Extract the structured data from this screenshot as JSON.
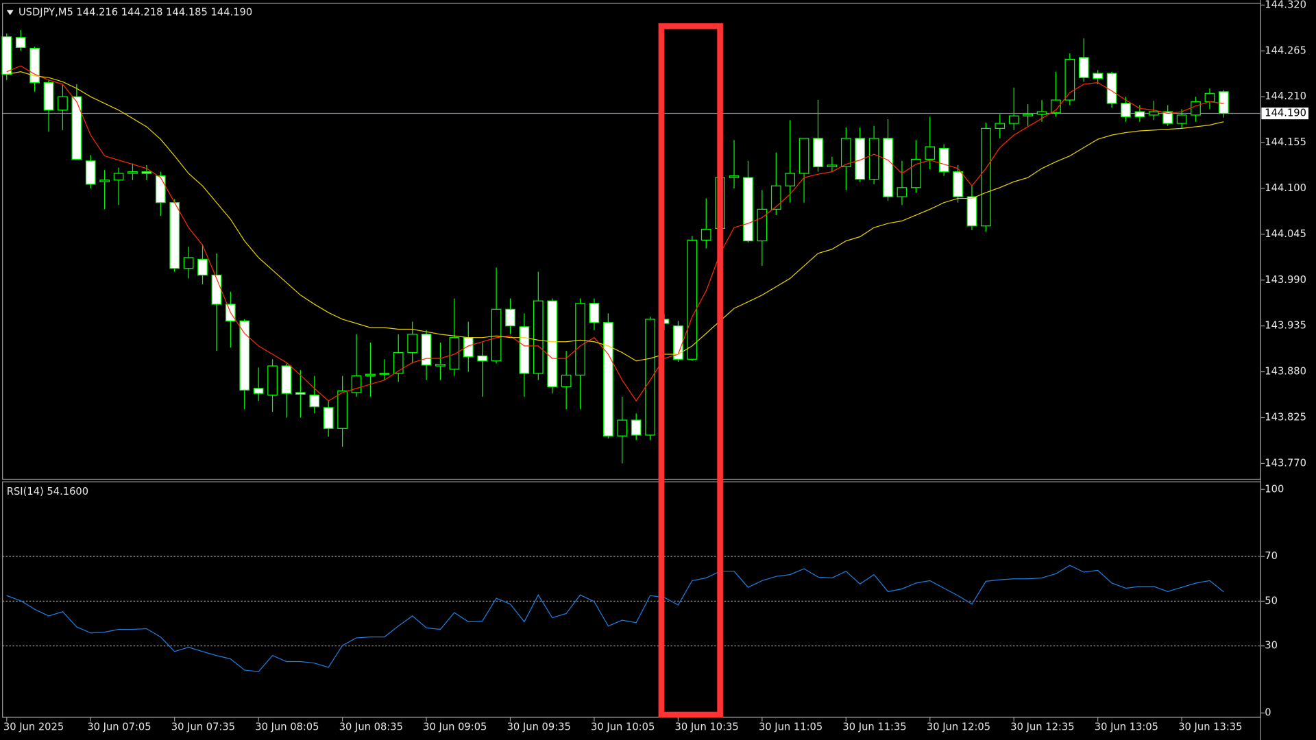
{
  "chart_data": [
    {
      "type": "candlestick",
      "title": "USDJPY,M5  144.216 144.218 144.185 144.190",
      "categories": [
        "30 Jun 2025",
        null,
        null,
        null,
        null,
        null,
        "30 Jun 07:05",
        null,
        null,
        null,
        null,
        null,
        "30 Jun 07:35",
        null,
        null,
        null,
        null,
        null,
        "30 Jun 08:05",
        null,
        null,
        null,
        null,
        null,
        "30 Jun 08:35",
        null,
        null,
        null,
        null,
        null,
        "30 Jun 09:05",
        null,
        null,
        null,
        null,
        null,
        "30 Jun 09:35",
        null,
        null,
        null,
        null,
        null,
        "30 Jun 10:05",
        null,
        null,
        null,
        null,
        null,
        "30 Jun 10:35",
        null,
        null,
        null,
        null,
        null,
        "30 Jun 11:05",
        null,
        null,
        null,
        null,
        null,
        "30 Jun 11:35",
        null,
        null,
        null,
        null,
        null,
        "30 Jun 12:05",
        null,
        null,
        null,
        null,
        null,
        "30 Jun 12:35",
        null,
        null,
        null,
        null,
        null,
        "30 Jun 13:05",
        null,
        null,
        null,
        null,
        null,
        "30 Jun 13:35",
        null,
        null,
        null
      ],
      "open": [
        144.282,
        144.281,
        144.268,
        144.227,
        144.194,
        144.21,
        144.133,
        144.108,
        144.11,
        144.118,
        144.12,
        144.115,
        144.083,
        144.004,
        144.015,
        143.996,
        143.961,
        143.941,
        143.86,
        143.852,
        143.887,
        143.855,
        143.852,
        143.837,
        143.812,
        143.855,
        143.875,
        143.877,
        143.878,
        143.903,
        143.925,
        143.887,
        143.883,
        143.921,
        143.899,
        143.893,
        143.955,
        143.934,
        143.878,
        143.965,
        143.862,
        143.876,
        143.962,
        143.939,
        143.803,
        143.822,
        143.804,
        143.943,
        143.935,
        143.895,
        144.038,
        144.052,
        144.113,
        144.113,
        144.037,
        144.075,
        144.103,
        144.118,
        144.16,
        144.126,
        144.126,
        144.16,
        144.111,
        144.16,
        144.09,
        144.101,
        144.135,
        144.148,
        144.12,
        144.09,
        144.055,
        144.172,
        144.178,
        144.187,
        144.189,
        144.191,
        144.206,
        144.257,
        144.238,
        144.238,
        144.202,
        144.192,
        144.188,
        144.192,
        144.178,
        144.188,
        144.204,
        144.216
      ],
      "high": [
        144.286,
        144.29,
        144.27,
        144.23,
        144.225,
        144.225,
        144.14,
        144.122,
        144.125,
        144.13,
        144.128,
        144.12,
        144.087,
        144.03,
        144.033,
        144.022,
        143.976,
        143.943,
        143.885,
        143.895,
        143.89,
        143.882,
        143.875,
        143.845,
        143.875,
        143.925,
        143.915,
        143.895,
        143.925,
        143.94,
        143.93,
        143.915,
        143.968,
        143.94,
        143.915,
        144.005,
        143.968,
        143.95,
        144.0,
        143.968,
        143.905,
        143.968,
        143.968,
        143.95,
        143.85,
        143.83,
        143.946,
        143.95,
        143.941,
        144.043,
        144.088,
        144.118,
        144.158,
        144.133,
        144.098,
        144.143,
        144.182,
        144.16,
        144.206,
        144.138,
        144.173,
        144.173,
        144.175,
        144.183,
        144.133,
        144.158,
        144.186,
        144.153,
        144.128,
        144.103,
        144.179,
        144.189,
        144.221,
        144.201,
        144.206,
        144.24,
        144.262,
        144.28,
        144.242,
        144.24,
        144.21,
        144.2,
        144.205,
        144.2,
        144.195,
        144.21,
        144.22,
        144.218
      ],
      "low": [
        144.23,
        144.265,
        144.216,
        144.168,
        144.17,
        144.135,
        144.1,
        144.075,
        144.08,
        144.11,
        144.11,
        144.067,
        144.0,
        143.992,
        143.985,
        143.905,
        143.909,
        143.835,
        143.845,
        143.832,
        143.825,
        143.825,
        143.83,
        143.802,
        143.79,
        143.85,
        143.85,
        143.87,
        143.868,
        143.89,
        143.87,
        143.87,
        143.875,
        143.88,
        143.85,
        143.89,
        143.925,
        143.85,
        143.87,
        143.854,
        143.835,
        143.835,
        143.93,
        143.8,
        143.77,
        143.798,
        143.798,
        143.93,
        143.892,
        143.893,
        144.028,
        144.05,
        144.1,
        144.035,
        144.007,
        144.068,
        144.083,
        144.083,
        144.12,
        144.12,
        144.098,
        144.108,
        144.105,
        144.085,
        144.08,
        144.095,
        144.123,
        144.115,
        144.083,
        144.05,
        144.048,
        144.16,
        144.17,
        144.175,
        144.18,
        144.186,
        144.2,
        144.228,
        144.225,
        144.197,
        144.18,
        144.18,
        144.182,
        144.175,
        144.172,
        144.18,
        144.195,
        144.185
      ],
      "close": [
        144.237,
        144.269,
        144.227,
        144.194,
        144.21,
        144.135,
        144.105,
        144.11,
        144.118,
        144.12,
        144.118,
        144.083,
        144.004,
        144.017,
        143.996,
        143.961,
        143.941,
        143.858,
        143.854,
        143.887,
        143.854,
        143.853,
        143.838,
        143.812,
        143.857,
        143.875,
        143.877,
        143.878,
        143.903,
        143.925,
        143.888,
        143.889,
        143.921,
        143.898,
        143.893,
        143.955,
        143.935,
        143.878,
        143.965,
        143.862,
        143.876,
        143.962,
        143.939,
        143.803,
        143.822,
        143.804,
        143.943,
        143.938,
        143.895,
        144.038,
        144.051,
        144.113,
        144.115,
        144.037,
        144.075,
        144.103,
        144.118,
        144.16,
        144.126,
        144.128,
        144.16,
        144.111,
        144.16,
        144.09,
        144.101,
        144.135,
        144.15,
        144.12,
        144.09,
        144.055,
        144.172,
        144.178,
        144.187,
        144.189,
        144.192,
        144.206,
        144.255,
        144.233,
        144.232,
        144.202,
        144.186,
        144.186,
        144.192,
        144.178,
        144.188,
        144.204,
        144.214,
        144.19
      ],
      "up_color": "#000000",
      "down_color": "#ffffff",
      "wick_color": "#00ff00",
      "series": [
        {
          "color": "#ff2a00",
          "values": [
            144.24,
            144.247,
            144.237,
            144.23,
            144.225,
            144.204,
            144.164,
            144.139,
            144.134,
            144.129,
            144.124,
            144.113,
            144.083,
            144.053,
            144.032,
            143.992,
            143.951,
            143.926,
            143.911,
            143.901,
            143.891,
            143.876,
            143.86,
            143.845,
            143.855,
            143.86,
            143.865,
            143.87,
            143.881,
            143.891,
            143.896,
            143.896,
            143.901,
            143.911,
            143.916,
            143.921,
            143.923,
            143.911,
            143.911,
            143.896,
            143.896,
            143.911,
            143.921,
            143.901,
            143.87,
            143.845,
            143.87,
            143.896,
            143.901,
            143.946,
            143.977,
            144.022,
            144.053,
            144.058,
            144.065,
            144.078,
            144.093,
            144.113,
            144.117,
            144.12,
            144.129,
            144.134,
            144.141,
            144.134,
            144.118,
            144.129,
            144.134,
            144.129,
            144.124,
            144.103,
            144.124,
            144.149,
            144.164,
            144.174,
            144.184,
            144.194,
            144.215,
            144.225,
            144.227,
            144.217,
            144.206,
            144.196,
            144.194,
            144.19,
            144.192,
            144.199,
            144.204,
            144.202
          ]
        },
        {
          "color": "#e6d200",
          "values": [
            144.237,
            144.24,
            144.235,
            144.233,
            144.228,
            144.22,
            144.21,
            144.202,
            144.194,
            144.184,
            144.174,
            144.159,
            144.139,
            144.118,
            144.103,
            144.083,
            144.063,
            144.037,
            144.017,
            144.002,
            143.987,
            143.972,
            143.961,
            143.951,
            143.943,
            143.938,
            143.933,
            143.933,
            143.931,
            143.931,
            143.928,
            143.925,
            143.923,
            143.921,
            143.921,
            143.923,
            143.921,
            143.921,
            143.918,
            143.916,
            143.916,
            143.918,
            143.916,
            143.911,
            143.903,
            143.893,
            143.896,
            143.901,
            143.901,
            143.911,
            143.926,
            143.941,
            143.956,
            143.964,
            143.972,
            143.982,
            143.992,
            144.007,
            144.022,
            144.027,
            144.037,
            144.042,
            144.053,
            144.058,
            144.061,
            144.068,
            144.075,
            144.083,
            144.088,
            144.088,
            144.095,
            144.101,
            144.108,
            144.113,
            144.124,
            144.132,
            144.139,
            144.149,
            144.159,
            144.164,
            144.167,
            144.169,
            144.17,
            144.171,
            144.172,
            144.174,
            144.176,
            144.18
          ]
        }
      ],
      "last_price": {
        "value": 144.19,
        "label": "144.190"
      },
      "ylim": [
        143.751,
        144.321
      ],
      "yticks": [
        {
          "value": 144.32,
          "label": "144.320"
        },
        144.265,
        {
          "value": 144.21,
          "label": "144.210"
        },
        144.155,
        {
          "value": 144.1,
          "label": "144.100"
        },
        144.045,
        {
          "value": 143.99,
          "label": "143.990"
        },
        143.935,
        {
          "value": 143.88,
          "label": "143.880"
        },
        143.825,
        {
          "value": 143.77,
          "label": "143.770"
        }
      ]
    },
    {
      "type": "line",
      "title": "RSI(14) 54.1600",
      "color": "#1e7fe0",
      "values": [
        52.5,
        50.2,
        46.4,
        43.4,
        45.3,
        38.5,
        35.8,
        36.2,
        37.4,
        37.4,
        37.7,
        34.0,
        27.5,
        29.4,
        27.5,
        25.7,
        24.2,
        19.2,
        18.5,
        25.7,
        23.0,
        23.0,
        22.3,
        20.4,
        30.2,
        33.6,
        34.0,
        34.0,
        38.9,
        43.4,
        38.1,
        37.4,
        44.9,
        40.8,
        41.1,
        51.3,
        48.7,
        40.8,
        52.8,
        42.6,
        44.5,
        52.8,
        49.8,
        38.9,
        41.5,
        40.4,
        52.5,
        51.7,
        48.3,
        59.2,
        60.4,
        63.4,
        63.4,
        56.2,
        59.2,
        61.1,
        61.9,
        64.5,
        60.8,
        60.4,
        63.4,
        57.7,
        61.9,
        54.3,
        55.5,
        58.1,
        59.2,
        55.8,
        52.5,
        48.7,
        58.9,
        59.6,
        60.0,
        60.0,
        60.4,
        62.3,
        66.0,
        63.0,
        63.8,
        58.1,
        55.8,
        56.6,
        56.6,
        54.3,
        56.2,
        58.1,
        59.2,
        54.16
      ],
      "ylim": [
        0,
        100
      ],
      "yticks": [
        0,
        30,
        50,
        70,
        100
      ],
      "levels": [
        30,
        50,
        70
      ]
    }
  ]
}
